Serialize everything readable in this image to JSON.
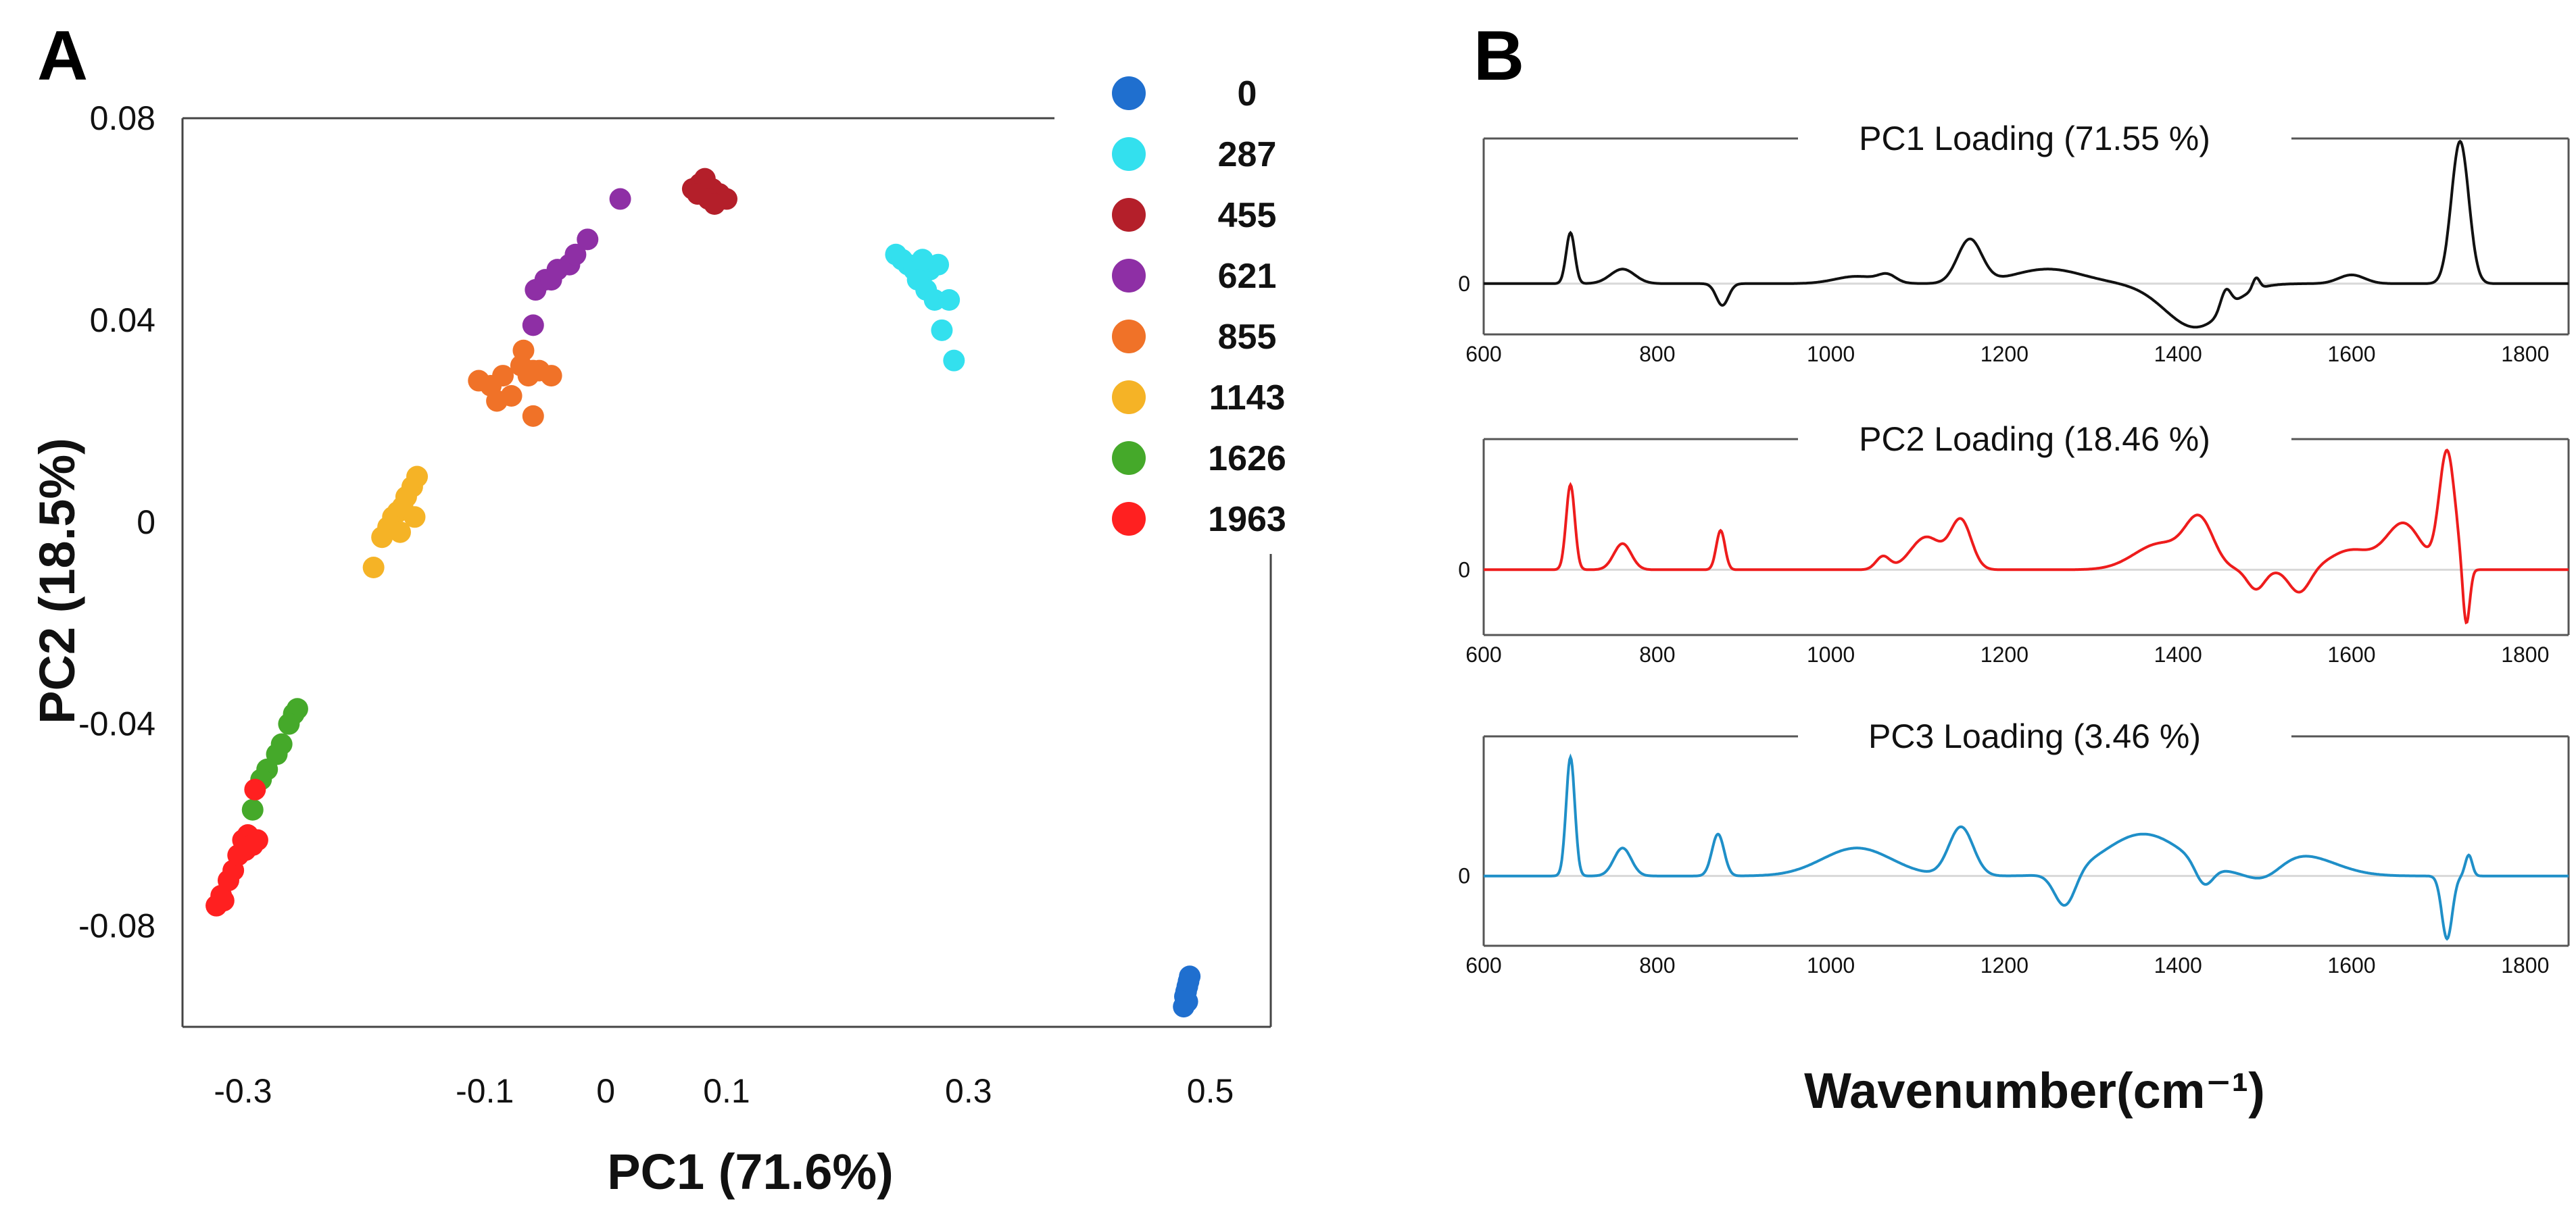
{
  "panels": {
    "a_label": "A",
    "b_label": "B"
  },
  "chart_data": [
    {
      "type": "scatter",
      "title": "",
      "xlabel": "PC1 (71.6%)",
      "ylabel": "PC2 (18.5%)",
      "xlim": [
        -0.35,
        0.55
      ],
      "ylim": [
        -0.1,
        0.08
      ],
      "xticks": [
        -0.3,
        -0.1,
        0,
        0.1,
        0.3,
        0.5
      ],
      "xtick_labels": [
        "-0.3",
        "-0.1",
        "0",
        "0.1",
        "0.3",
        "0.5"
      ],
      "yticks": [
        -0.08,
        -0.04,
        0,
        0.04,
        0.08
      ],
      "ytick_labels": [
        "-0.08",
        "-0.04",
        "0",
        "0.04",
        "0.08"
      ],
      "legend_position": "top-right",
      "series": [
        {
          "name": "0",
          "color": "#1f6fcf",
          "points": [
            [
              0.483,
              -0.09
            ],
            [
              0.481,
              -0.092
            ],
            [
              0.479,
              -0.094
            ],
            [
              0.478,
              -0.096
            ],
            [
              0.481,
              -0.095
            ],
            [
              0.48,
              -0.093
            ],
            [
              0.482,
              -0.091
            ]
          ]
        },
        {
          "name": "287",
          "color": "#33e0ee",
          "points": [
            [
              0.24,
              0.053
            ],
            [
              0.245,
              0.052
            ],
            [
              0.25,
              0.051
            ],
            [
              0.255,
              0.05
            ],
            [
              0.262,
              0.049
            ],
            [
              0.268,
              0.05
            ],
            [
              0.275,
              0.051
            ],
            [
              0.265,
              0.046
            ],
            [
              0.272,
              0.044
            ],
            [
              0.284,
              0.044
            ],
            [
              0.278,
              0.038
            ],
            [
              0.288,
              0.032
            ],
            [
              0.258,
              0.048
            ],
            [
              0.262,
              0.052
            ]
          ]
        },
        {
          "name": "455",
          "color": "#b41f2a",
          "points": [
            [
              0.072,
              0.066
            ],
            [
              0.078,
              0.067
            ],
            [
              0.082,
              0.068
            ],
            [
              0.088,
              0.066
            ],
            [
              0.094,
              0.065
            ],
            [
              0.1,
              0.064
            ],
            [
              0.085,
              0.064
            ],
            [
              0.09,
              0.063
            ],
            [
              0.076,
              0.065
            ]
          ]
        },
        {
          "name": "621",
          "color": "#8e2fa5",
          "points": [
            [
              -0.06,
              0.039
            ],
            [
              -0.058,
              0.046
            ],
            [
              -0.05,
              0.048
            ],
            [
              -0.045,
              0.048
            ],
            [
              -0.04,
              0.05
            ],
            [
              -0.03,
              0.051
            ],
            [
              -0.025,
              0.053
            ],
            [
              -0.015,
              0.056
            ],
            [
              0.012,
              0.064
            ]
          ]
        },
        {
          "name": "855",
          "color": "#f07228",
          "points": [
            [
              -0.105,
              0.028
            ],
            [
              -0.095,
              0.027
            ],
            [
              -0.085,
              0.029
            ],
            [
              -0.078,
              0.025
            ],
            [
              -0.07,
              0.031
            ],
            [
              -0.068,
              0.034
            ],
            [
              -0.064,
              0.029
            ],
            [
              -0.06,
              0.03
            ],
            [
              -0.055,
              0.03
            ],
            [
              -0.045,
              0.029
            ],
            [
              -0.09,
              0.024
            ],
            [
              -0.06,
              0.021
            ]
          ]
        },
        {
          "name": "1143",
          "color": "#f5b326",
          "points": [
            [
              -0.192,
              -0.009
            ],
            [
              -0.185,
              -0.003
            ],
            [
              -0.18,
              -0.001
            ],
            [
              -0.176,
              0.001
            ],
            [
              -0.172,
              0.002
            ],
            [
              -0.168,
              0.003
            ],
            [
              -0.165,
              0.005
            ],
            [
              -0.16,
              0.007
            ],
            [
              -0.156,
              0.009
            ],
            [
              -0.158,
              0.001
            ],
            [
              -0.17,
              -0.002
            ]
          ]
        },
        {
          "name": "1626",
          "color": "#45a92a",
          "points": [
            [
              -0.255,
              -0.037
            ],
            [
              -0.258,
              -0.038
            ],
            [
              -0.262,
              -0.04
            ],
            [
              -0.268,
              -0.044
            ],
            [
              -0.272,
              -0.046
            ],
            [
              -0.28,
              -0.049
            ],
            [
              -0.285,
              -0.051
            ],
            [
              -0.292,
              -0.057
            ]
          ]
        },
        {
          "name": "1963",
          "color": "#ff2020",
          "points": [
            [
              -0.322,
              -0.076
            ],
            [
              -0.318,
              -0.074
            ],
            [
              -0.312,
              -0.071
            ],
            [
              -0.308,
              -0.069
            ],
            [
              -0.304,
              -0.066
            ],
            [
              -0.3,
              -0.063
            ],
            [
              -0.296,
              -0.062
            ],
            [
              -0.292,
              -0.064
            ],
            [
              -0.288,
              -0.063
            ],
            [
              -0.29,
              -0.053
            ],
            [
              -0.316,
              -0.075
            ],
            [
              -0.298,
              -0.065
            ]
          ]
        }
      ]
    },
    {
      "type": "line",
      "title": "PC1 Loading (71.55 %)",
      "xlabel": "Wavenumber(cm⁻¹)",
      "xlim": [
        600,
        1850
      ],
      "xticks": [
        600,
        800,
        1000,
        1200,
        1400,
        1600,
        1800
      ],
      "ylim": [
        -0.35,
        1.0
      ],
      "ytick_labels": [
        "0"
      ],
      "series": [
        {
          "name": "",
          "color": "#111111",
          "baseline": 0.0,
          "peaks": [
            [
              700,
              0.35,
              5
            ],
            [
              760,
              0.1,
              14
            ],
            [
              875,
              -0.15,
              7
            ],
            [
              1030,
              0.05,
              25
            ],
            [
              1065,
              0.05,
              10
            ],
            [
              1160,
              0.3,
              14
            ],
            [
              1250,
              0.1,
              40
            ],
            [
              1420,
              -0.3,
              35
            ],
            [
              1455,
              0.14,
              6
            ],
            [
              1490,
              0.08,
              4
            ],
            [
              1600,
              0.06,
              15
            ],
            [
              1725,
              0.98,
              10
            ]
          ]
        }
      ]
    },
    {
      "type": "line",
      "title": "PC2 Loading (18.46 %)",
      "xlim": [
        600,
        1850
      ],
      "xticks": [
        600,
        800,
        1000,
        1200,
        1400,
        1600,
        1800
      ],
      "ylim": [
        -0.5,
        1.0
      ],
      "ytick_labels": [
        "0"
      ],
      "series": [
        {
          "name": "",
          "color": "#ee1c1c",
          "baseline": 0.0,
          "peaks": [
            [
              700,
              0.65,
              5
            ],
            [
              760,
              0.2,
              10
            ],
            [
              873,
              0.3,
              5
            ],
            [
              1060,
              0.1,
              8
            ],
            [
              1110,
              0.25,
              18
            ],
            [
              1150,
              0.37,
              12
            ],
            [
              1380,
              0.2,
              30
            ],
            [
              1425,
              0.35,
              16
            ],
            [
              1490,
              -0.15,
              10
            ],
            [
              1540,
              -0.18,
              12
            ],
            [
              1600,
              0.15,
              25
            ],
            [
              1660,
              0.35,
              20
            ],
            [
              1710,
              0.9,
              9
            ],
            [
              1732,
              -0.45,
              4
            ]
          ]
        }
      ]
    },
    {
      "type": "line",
      "title": "PC3 Loading (3.46 %)",
      "xlim": [
        600,
        1850
      ],
      "xticks": [
        600,
        800,
        1000,
        1200,
        1400,
        1600,
        1800
      ],
      "ylim": [
        -0.5,
        1.0
      ],
      "ytick_labels": [
        "0"
      ],
      "series": [
        {
          "name": "",
          "color": "#1f8fc8",
          "baseline": 0.0,
          "peaks": [
            [
              700,
              0.85,
              5
            ],
            [
              760,
              0.2,
              10
            ],
            [
              870,
              0.3,
              7
            ],
            [
              1030,
              0.2,
              40
            ],
            [
              1150,
              0.35,
              14
            ],
            [
              1270,
              -0.25,
              12
            ],
            [
              1360,
              0.3,
              45
            ],
            [
              1430,
              -0.15,
              10
            ],
            [
              1500,
              -0.1,
              20
            ],
            [
              1540,
              0.15,
              40
            ],
            [
              1710,
              -0.45,
              6
            ],
            [
              1735,
              0.15,
              4
            ]
          ]
        }
      ]
    }
  ]
}
